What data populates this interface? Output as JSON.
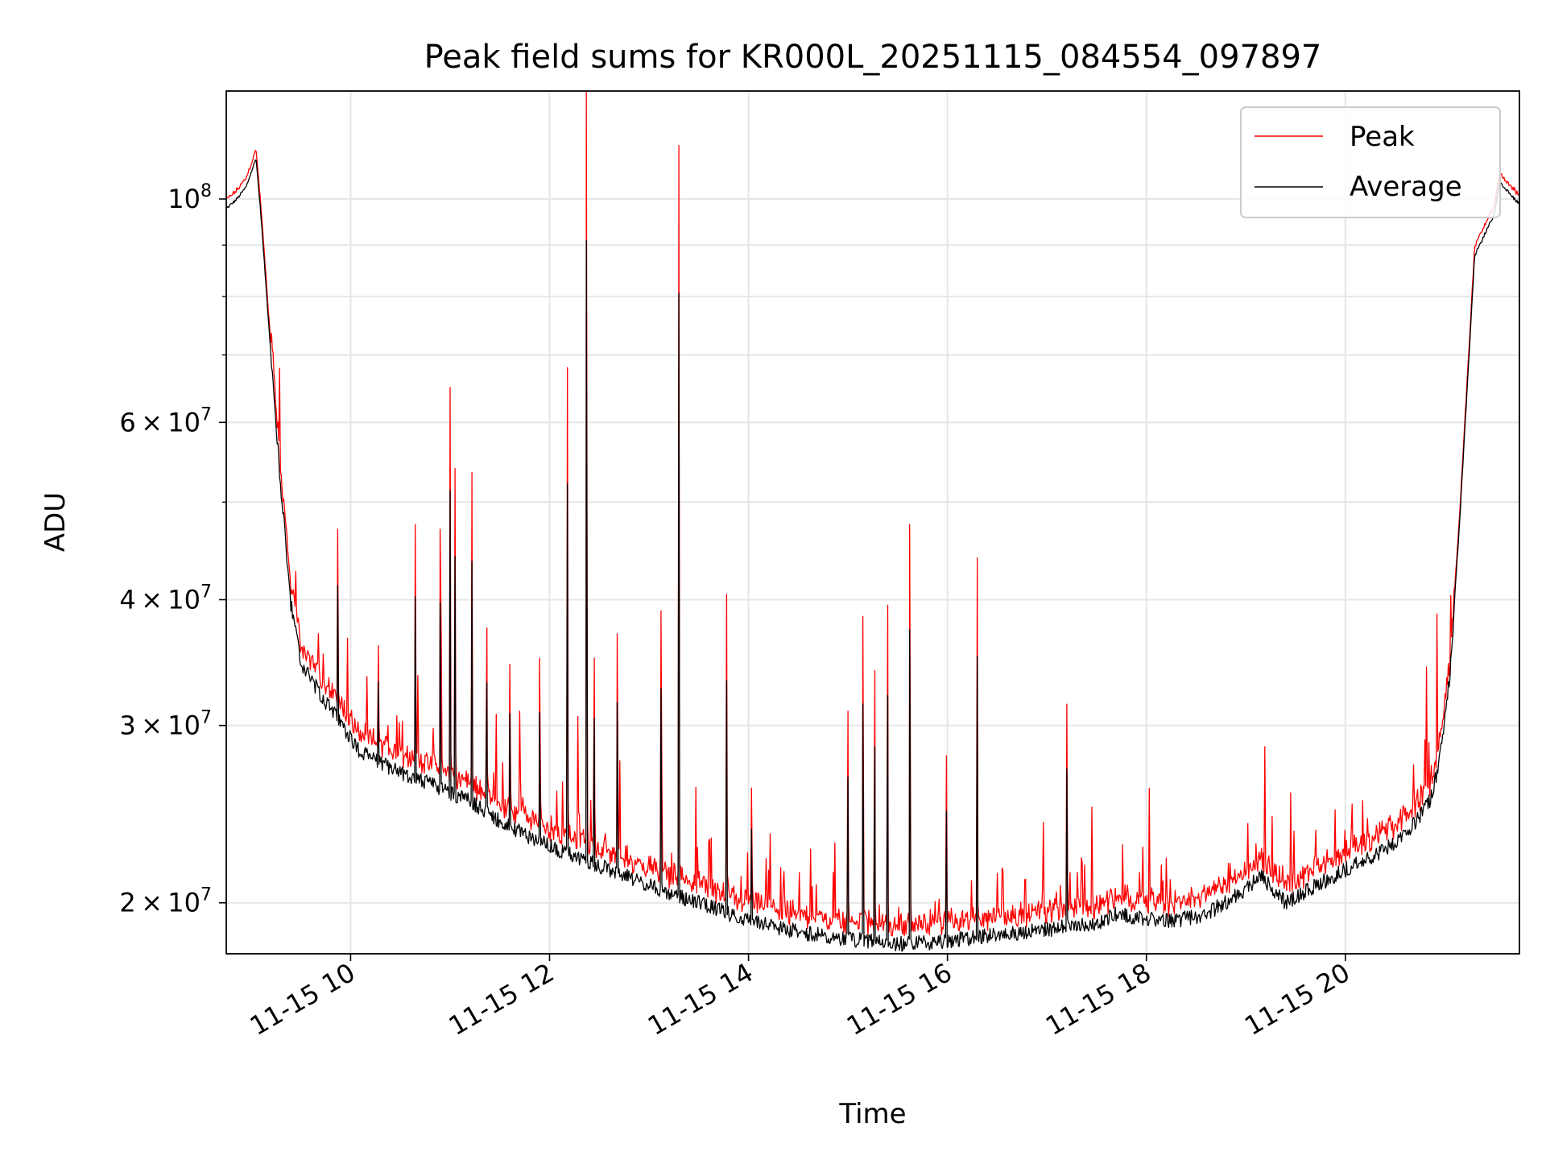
{
  "chart_data": {
    "type": "line",
    "title": "Peak field sums for KR000L_20251115_084554_097897",
    "xlabel": "Time",
    "ylabel": "ADU",
    "yscale": "log",
    "grid": true,
    "legend_position": "top-right",
    "xlim_hours": [
      8.75,
      21.75
    ],
    "ylim": [
      17800000,
      128000000
    ],
    "x_ticks": [
      {
        "hour": 10,
        "label": "11-15 10"
      },
      {
        "hour": 12,
        "label": "11-15 12"
      },
      {
        "hour": 14,
        "label": "11-15 14"
      },
      {
        "hour": 16,
        "label": "11-15 16"
      },
      {
        "hour": 18,
        "label": "11-15 18"
      },
      {
        "hour": 20,
        "label": "11-15 20"
      }
    ],
    "y_ticks": [
      {
        "value": 20000000,
        "base": "2",
        "exp": "7"
      },
      {
        "value": 30000000,
        "base": "3",
        "exp": "7"
      },
      {
        "value": 40000000,
        "base": "4",
        "exp": "7"
      },
      {
        "value": 60000000,
        "base": "6",
        "exp": "7"
      },
      {
        "value": 100000000,
        "base": "10",
        "exp": "8"
      }
    ],
    "y_minor_ticks": [
      50000000,
      70000000,
      80000000,
      90000000
    ],
    "baseline": [
      [
        8.75,
        98000000
      ],
      [
        8.85,
        100000000
      ],
      [
        8.95,
        103000000
      ],
      [
        9.05,
        110000000
      ],
      [
        9.1,
        96000000
      ],
      [
        9.2,
        70000000
      ],
      [
        9.3,
        52000000
      ],
      [
        9.4,
        40000000
      ],
      [
        9.5,
        35000000
      ],
      [
        9.7,
        32500000
      ],
      [
        9.9,
        30500000
      ],
      [
        10.1,
        28500000
      ],
      [
        10.4,
        27500000
      ],
      [
        10.8,
        26500000
      ],
      [
        11.2,
        25500000
      ],
      [
        11.6,
        24000000
      ],
      [
        12.0,
        23000000
      ],
      [
        12.5,
        22000000
      ],
      [
        13.0,
        21000000
      ],
      [
        13.5,
        20200000
      ],
      [
        14.0,
        19400000
      ],
      [
        14.5,
        18900000
      ],
      [
        15.0,
        18600000
      ],
      [
        15.5,
        18400000
      ],
      [
        16.0,
        18500000
      ],
      [
        16.5,
        18800000
      ],
      [
        17.0,
        19000000
      ],
      [
        17.5,
        19300000
      ],
      [
        17.7,
        19700000
      ],
      [
        17.9,
        19500000
      ],
      [
        18.3,
        19400000
      ],
      [
        18.6,
        19700000
      ],
      [
        18.9,
        20500000
      ],
      [
        19.15,
        21500000
      ],
      [
        19.4,
        20200000
      ],
      [
        19.7,
        21000000
      ],
      [
        20.0,
        21800000
      ],
      [
        20.3,
        22500000
      ],
      [
        20.6,
        23500000
      ],
      [
        20.85,
        25500000
      ],
      [
        20.95,
        28000000
      ],
      [
        21.05,
        34000000
      ],
      [
        21.15,
        48000000
      ],
      [
        21.3,
        88000000
      ],
      [
        21.5,
        97000000
      ],
      [
        21.55,
        104000000
      ],
      [
        21.75,
        99000000
      ]
    ],
    "spikes": [
      [
        9.87,
        47000000
      ],
      [
        10.28,
        36000000
      ],
      [
        10.65,
        47500000
      ],
      [
        10.9,
        47000000
      ],
      [
        11.0,
        65000000
      ],
      [
        11.05,
        54000000
      ],
      [
        11.22,
        53500000
      ],
      [
        11.37,
        37500000
      ],
      [
        11.6,
        34500000
      ],
      [
        11.9,
        35000000
      ],
      [
        12.18,
        68000000
      ],
      [
        12.37,
        128000000
      ],
      [
        12.45,
        35000000
      ],
      [
        12.68,
        37000000
      ],
      [
        13.12,
        39000000
      ],
      [
        13.3,
        113000000
      ],
      [
        13.78,
        40500000
      ],
      [
        14.03,
        26000000
      ],
      [
        15.0,
        31000000
      ],
      [
        15.15,
        38500000
      ],
      [
        15.27,
        34000000
      ],
      [
        15.4,
        39500000
      ],
      [
        15.62,
        47500000
      ],
      [
        15.99,
        28000000
      ],
      [
        16.3,
        44000000
      ],
      [
        17.2,
        31500000
      ]
    ],
    "series": [
      {
        "name": "Peak",
        "color": "#ff0000"
      },
      {
        "name": "Average",
        "color": "#000000"
      }
    ]
  }
}
